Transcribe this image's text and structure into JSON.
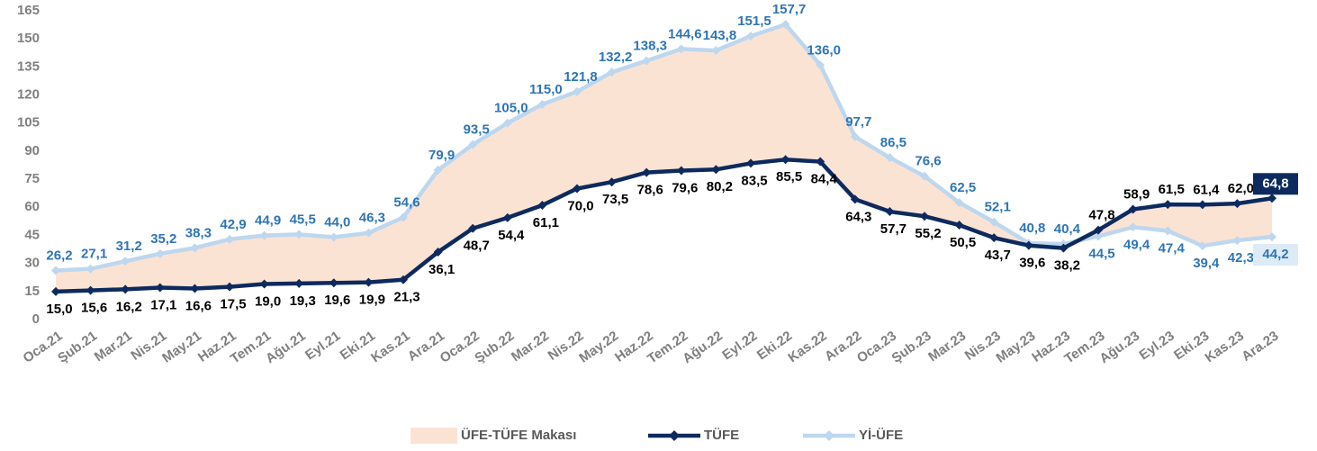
{
  "chart_data": {
    "type": "line",
    "categories": [
      "Oca.21",
      "Şub.21",
      "Mar.21",
      "Nis.21",
      "May.21",
      "Haz.21",
      "Tem.21",
      "Ağu.21",
      "Eyl.21",
      "Eki.21",
      "Kas.21",
      "Ara.21",
      "Oca.22",
      "Şub.22",
      "Mar.22",
      "Nis.22",
      "May.22",
      "Haz.22",
      "Tem.22",
      "Ağu.22",
      "Eyl.22",
      "Eki.22",
      "Kas.22",
      "Ara.22",
      "Oca.23",
      "Şub.23",
      "Mar.23",
      "Nis.23",
      "May.23",
      "Haz.23",
      "Tem.23",
      "Ağu.23",
      "Eyl.23",
      "Eki.23",
      "Kas.23",
      "Ara.23"
    ],
    "band": {
      "name": "ÜFE-TÜFE Makası",
      "color": "#fbe3d4"
    },
    "series": [
      {
        "name": "TÜFE",
        "color": "#0d2a5e",
        "values": [
          15.0,
          15.6,
          16.2,
          17.1,
          16.6,
          17.5,
          19.0,
          19.3,
          19.6,
          19.9,
          21.3,
          36.1,
          48.7,
          54.4,
          61.1,
          70.0,
          73.5,
          78.6,
          79.6,
          80.2,
          83.5,
          85.5,
          84.4,
          64.3,
          57.7,
          55.2,
          50.5,
          43.7,
          39.6,
          38.2,
          47.8,
          58.9,
          61.5,
          61.4,
          62.0,
          64.8
        ],
        "value_labels": [
          "15,0",
          "15,6",
          "16,2",
          "17,1",
          "16,6",
          "17,5",
          "19,0",
          "19,3",
          "19,6",
          "19,9",
          "21,3",
          "36,1",
          "48,7",
          "54,4",
          "61,1",
          "70,0",
          "73,5",
          "78,6",
          "79,6",
          "80,2",
          "83,5",
          "85,5",
          "84,4",
          "64,3",
          "57,7",
          "55,2",
          "50,5",
          "43,7",
          "39,6",
          "38,2",
          "47,8",
          "58,9",
          "61,5",
          "61,4",
          "62,0",
          "64,8"
        ]
      },
      {
        "name": "Yİ-ÜFE",
        "color": "#bdd7ee",
        "values": [
          26.2,
          27.1,
          31.2,
          35.2,
          38.3,
          42.9,
          44.9,
          45.5,
          44.0,
          46.3,
          54.6,
          79.9,
          93.5,
          105.0,
          115.0,
          121.8,
          132.2,
          138.3,
          144.6,
          143.8,
          151.5,
          157.7,
          136.0,
          97.7,
          86.5,
          76.6,
          62.5,
          52.1,
          40.8,
          40.4,
          44.5,
          49.4,
          47.4,
          39.4,
          42.3,
          44.2
        ],
        "value_labels": [
          "26,2",
          "27,1",
          "31,2",
          "35,2",
          "38,3",
          "42,9",
          "44,9",
          "45,5",
          "44,0",
          "46,3",
          "54,6",
          "79,9",
          "93,5",
          "105,0",
          "115,0",
          "121,8",
          "132,2",
          "138,3",
          "144,6",
          "143,8",
          "151,5",
          "157,7",
          "136,0",
          "97,7",
          "86,5",
          "76,6",
          "62,5",
          "52,1",
          "40,8",
          "40,4",
          "44,5",
          "49,4",
          "47,4",
          "39,4",
          "42,3",
          "44,2"
        ]
      }
    ],
    "ylim": [
      0,
      165
    ],
    "yticks": [
      0,
      15,
      30,
      45,
      60,
      75,
      90,
      105,
      120,
      135,
      150,
      165
    ],
    "grid": false,
    "legend": "bottom"
  }
}
